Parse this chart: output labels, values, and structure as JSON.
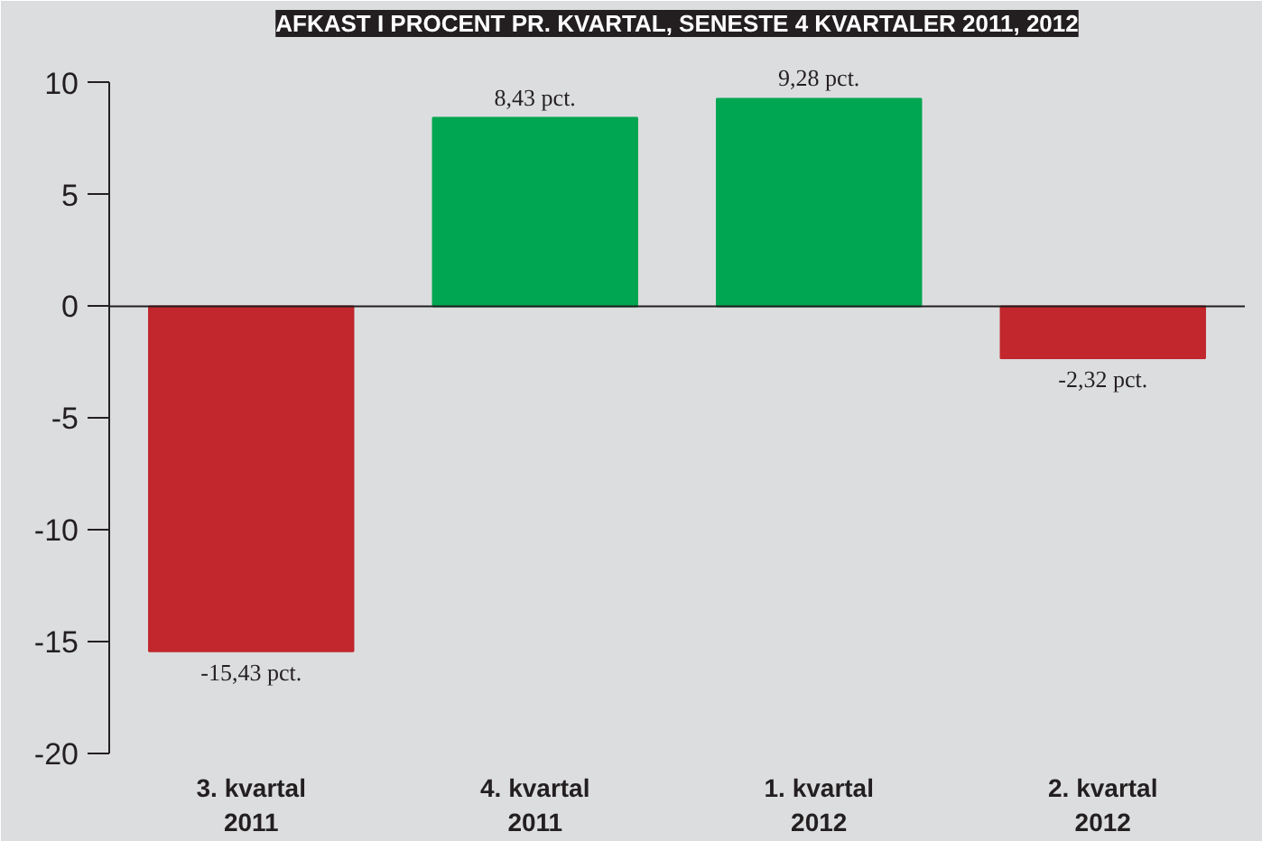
{
  "chart_data": {
    "type": "bar",
    "title": "AFKAST I PROCENT PR. KVARTAL, SENESTE 4 KVARTALER 2011, 2012",
    "categories": [
      "3. kvartal\n2011",
      "4. kvartal\n2011",
      "1. kvartal\n2012",
      "2. kvartal\n2012"
    ],
    "values": [
      -15.43,
      8.43,
      9.28,
      -2.32
    ],
    "colors": [
      "#c1272d",
      "#00a651",
      "#00a651",
      "#c1272d"
    ],
    "value_labels": [
      "-15,43 pct.",
      "8,43 pct.",
      "9,28 pct.",
      "-2,32 pct."
    ],
    "ylim": [
      -20,
      10
    ],
    "yticks": [
      -20,
      -15,
      -10,
      -5,
      0,
      5,
      10
    ]
  }
}
